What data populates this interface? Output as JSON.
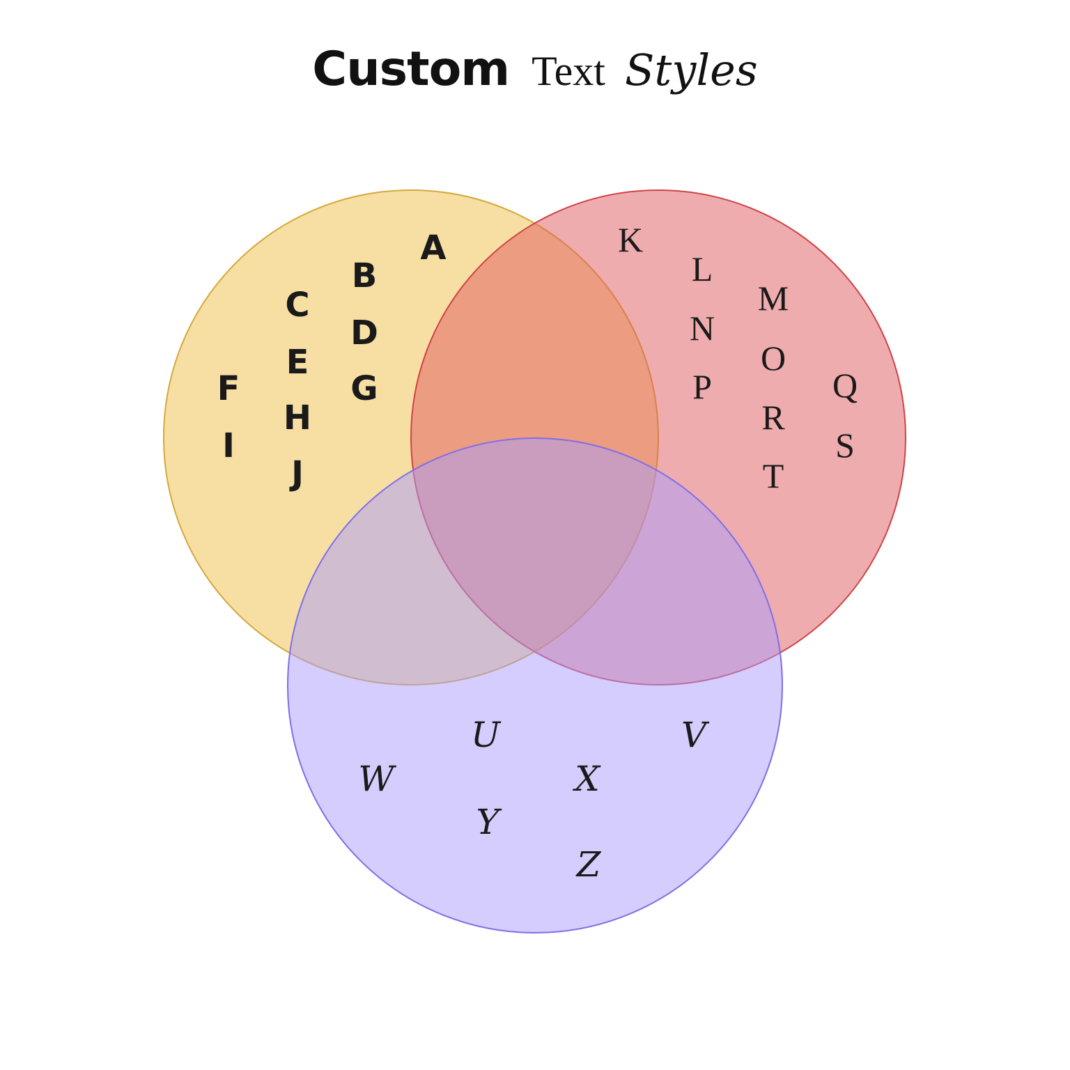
{
  "title": {
    "part1": "Custom",
    "part2": "Text",
    "part3": "Styles"
  },
  "sets": [
    {
      "key": "yellow",
      "fill": "#f0c04a",
      "stroke": "#d4a83a",
      "style": "marker",
      "letters": [
        "A",
        "B",
        "C",
        "D",
        "E",
        "F",
        "G",
        "H",
        "I",
        "J"
      ]
    },
    {
      "key": "red",
      "fill": "#e0595e",
      "stroke": "#cf4247",
      "style": "serif",
      "letters": [
        "K",
        "L",
        "M",
        "N",
        "O",
        "P",
        "Q",
        "R",
        "S",
        "T"
      ]
    },
    {
      "key": "purple",
      "fill": "#a99cfb",
      "stroke": "#7f6ee8",
      "style": "script",
      "letters": [
        "U",
        "V",
        "W",
        "X",
        "Y",
        "Z"
      ]
    }
  ],
  "fill_opacity": 0.5
}
